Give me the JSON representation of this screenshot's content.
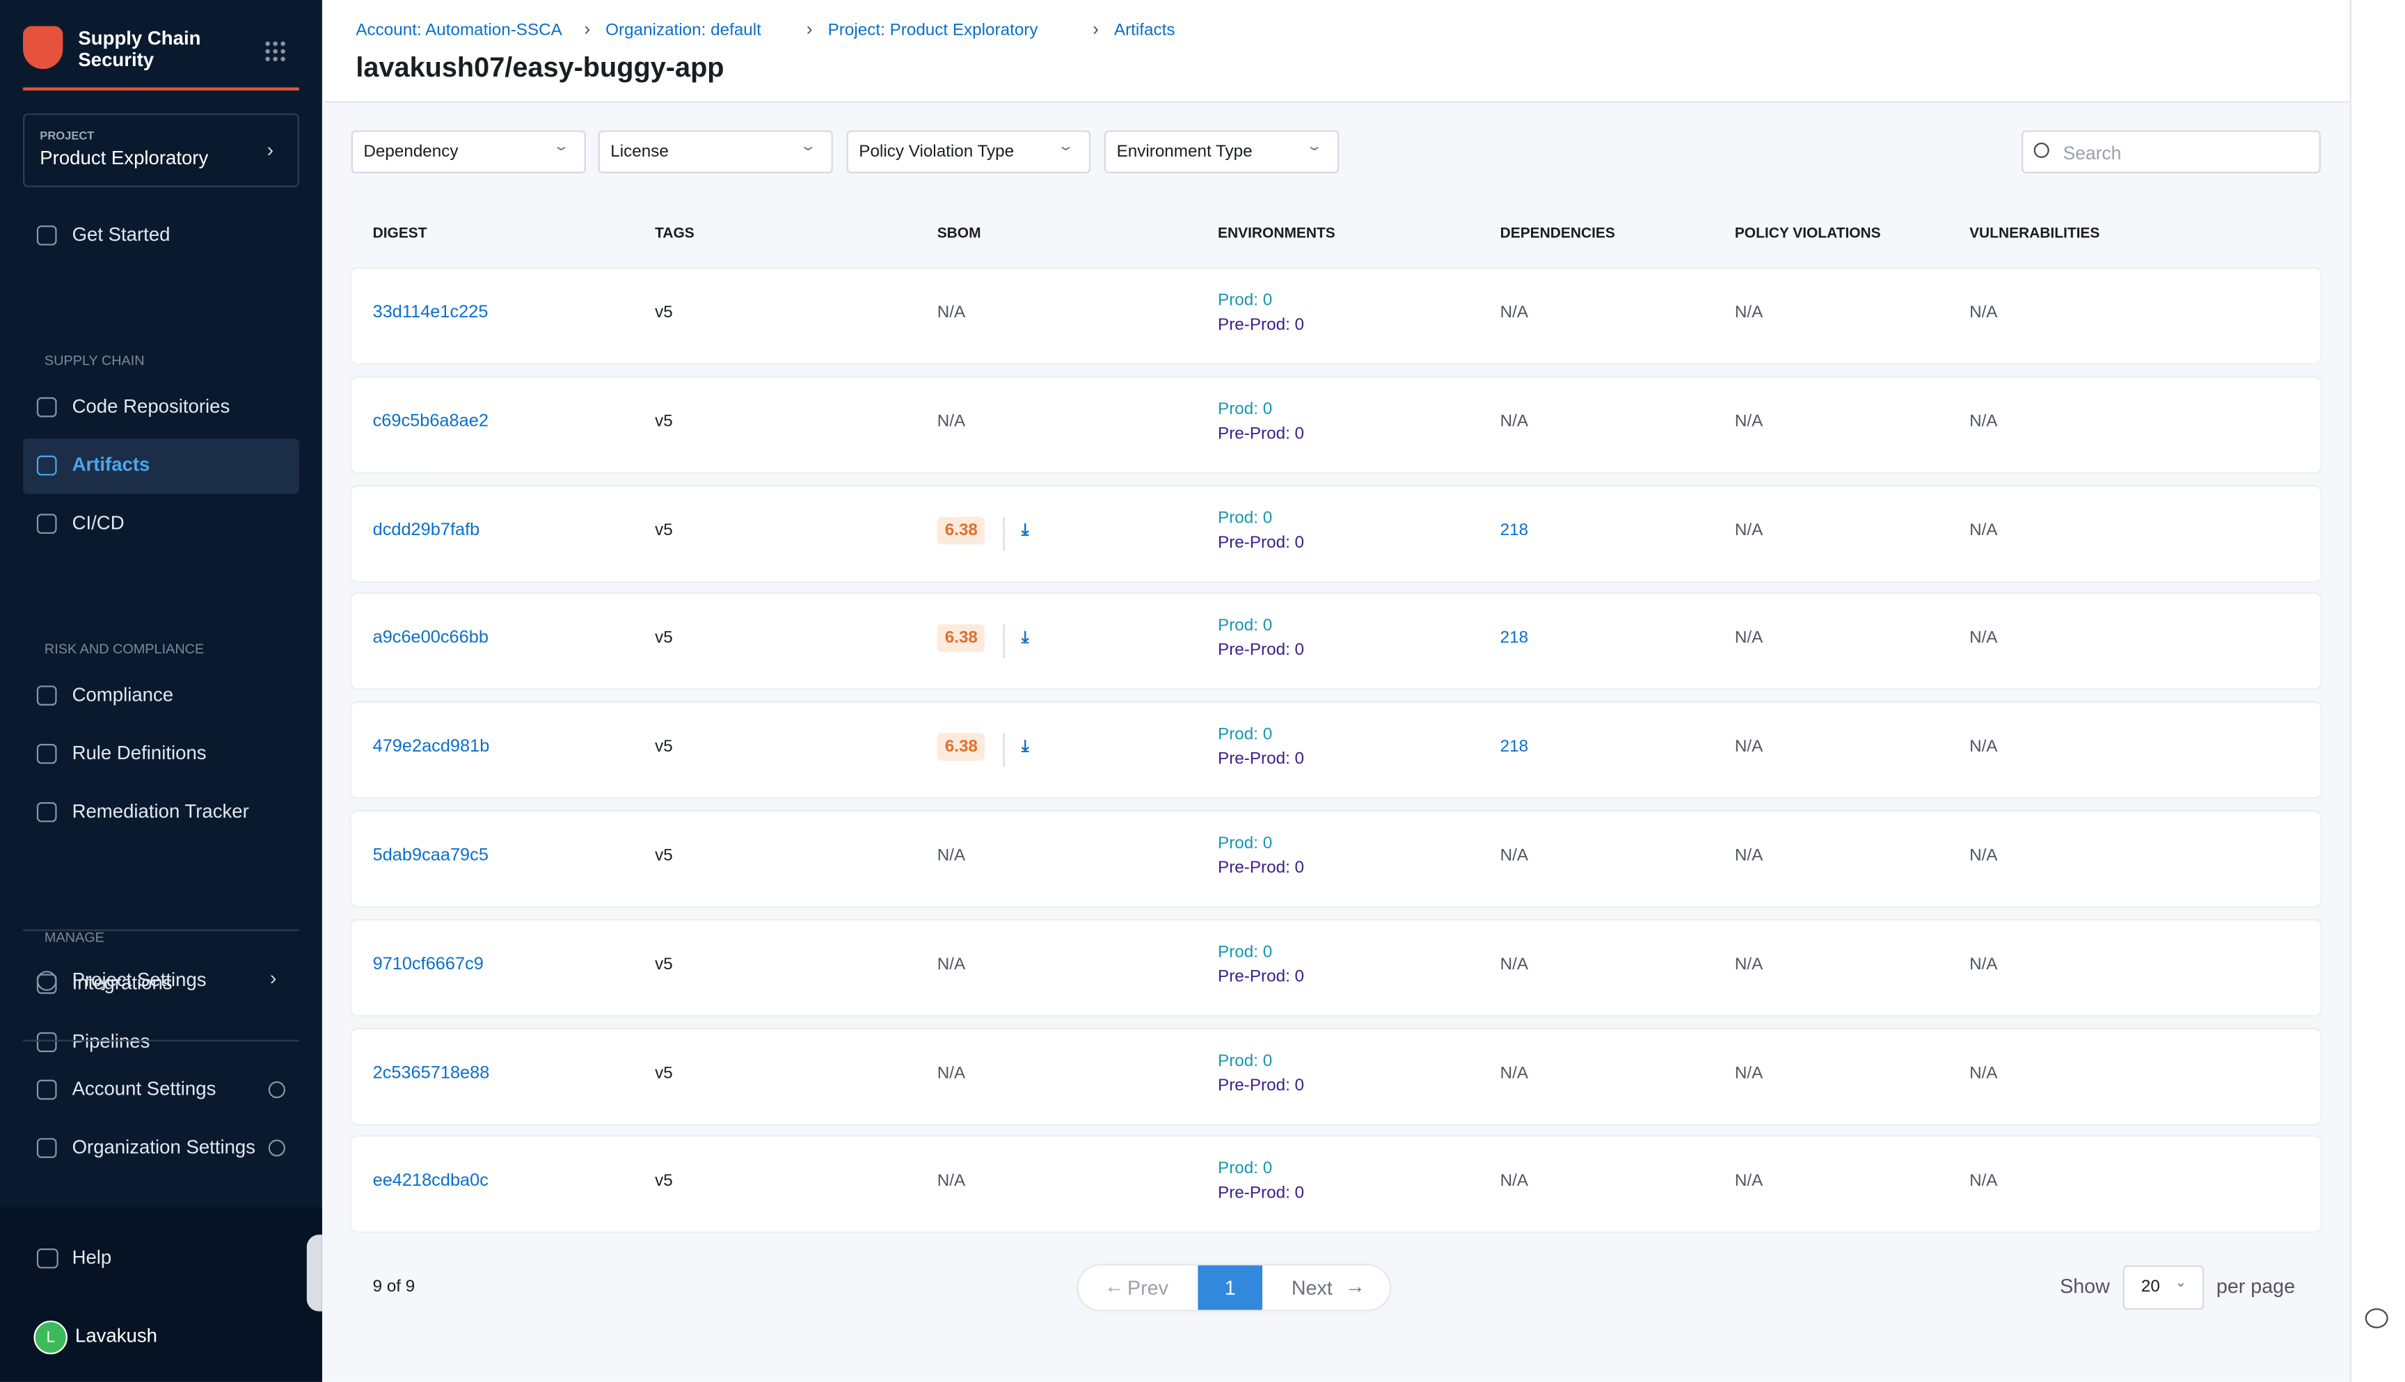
{
  "sidebar": {
    "title": "Supply Chain Security",
    "project_label": "PROJECT",
    "project_name": "Product Exploratory",
    "groups": [
      {
        "items": [
          "Get Started"
        ]
      },
      {
        "heading": "SUPPLY CHAIN",
        "items": [
          "Code Repositories",
          "Artifacts",
          "CI/CD"
        ]
      },
      {
        "heading": "RISK AND COMPLIANCE",
        "items": [
          "Compliance",
          "Rule Definitions",
          "Remediation Tracker"
        ]
      },
      {
        "heading": "MANAGE",
        "items": [
          "Integrations",
          "Pipelines"
        ]
      }
    ],
    "project_settings": "Project Settings",
    "account_settings": "Account Settings",
    "org_settings": "Organization Settings",
    "help": "Help",
    "user": "Lavakush",
    "user_initial": "L"
  },
  "breadcrumbs": [
    "Account: Automation-SSCA",
    "Organization: default",
    "Project: Product Exploratory",
    "Artifacts"
  ],
  "page_title": "lavakush07/easy-buggy-app",
  "filters": [
    "Dependency",
    "License",
    "Policy Violation Type",
    "Environment Type"
  ],
  "search_placeholder": "Search",
  "table": {
    "columns": [
      "DIGEST",
      "TAGS",
      "SBOM",
      "ENVIRONMENTS",
      "DEPENDENCIES",
      "POLICY VIOLATIONS",
      "VULNERABILITIES"
    ],
    "rows": [
      [
        "33d114e1c225",
        "v5",
        "N/A",
        "Prod: 0",
        "Pre-Prod: 0",
        "N/A",
        "N/A",
        "N/A"
      ],
      [
        "c69c5b6a8ae2",
        "v5",
        "N/A",
        "Prod: 0",
        "Pre-Prod: 0",
        "N/A",
        "N/A",
        "N/A"
      ],
      [
        "dcdd29b7fafb",
        "v5",
        6.38,
        "Prod: 0",
        "Pre-Prod: 0",
        218,
        "N/A",
        "N/A"
      ],
      [
        "a9c6e00c66bb",
        "v5",
        6.38,
        "Prod: 0",
        "Pre-Prod: 0",
        218,
        "N/A",
        "N/A"
      ],
      [
        "479e2acd981b",
        "v5",
        6.38,
        "Prod: 0",
        "Pre-Prod: 0",
        218,
        "N/A",
        "N/A"
      ],
      [
        "5dab9caa79c5",
        "v5",
        "N/A",
        "Prod: 0",
        "Pre-Prod: 0",
        "N/A",
        "N/A",
        "N/A"
      ],
      [
        "9710cf6667c9",
        "v5",
        "N/A",
        "Prod: 0",
        "Pre-Prod: 0",
        "N/A",
        "N/A",
        "N/A"
      ],
      [
        "2c5365718e88",
        "v5",
        "N/A",
        "Prod: 0",
        "Pre-Prod: 0",
        "N/A",
        "N/A",
        "N/A"
      ],
      [
        "ee4218cdba0c",
        "v5",
        "N/A",
        "Prod: 0",
        "Pre-Prod: 0",
        "N/A",
        "N/A",
        "N/A"
      ]
    ]
  },
  "pagination": {
    "summary": "9 of 9",
    "prev": "Prev",
    "page": 1,
    "next": "Next",
    "show": "Show",
    "page_size": 20,
    "per_page": "per page"
  }
}
